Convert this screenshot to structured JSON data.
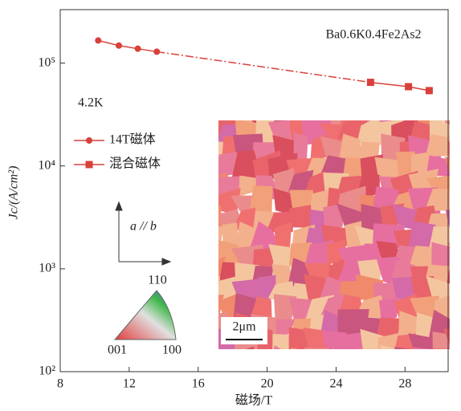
{
  "chart_data": {
    "type": "line",
    "title": "Ba0.6K0.4Fe2As2",
    "x_label": "磁场/T",
    "y_label": "Jc/(A/cm²)",
    "annotations": [
      "4.2K",
      "a // b",
      "110",
      "001",
      "100",
      "2μm"
    ],
    "xlim": [
      8,
      30.5
    ],
    "xticks": [
      8,
      12,
      16,
      20,
      24,
      28
    ],
    "ylim": [
      100,
      331000
    ],
    "log_y": true,
    "yticks": [
      {
        "value": 100,
        "label": "10²"
      },
      {
        "value": 1000,
        "label": "10³"
      },
      {
        "value": 10000,
        "label": "10⁴"
      },
      {
        "value": 100000,
        "label": "10⁵"
      }
    ],
    "legend": "upper left",
    "series": [
      {
        "name": "14T磁体",
        "color": "#d9403a",
        "marker": "circle",
        "x": [
          10.2,
          11.4,
          12.5,
          13.6
        ],
        "values": [
          166000,
          148000,
          138000,
          129000
        ]
      },
      {
        "name": "混合磁体",
        "color": "#d9403a",
        "marker": "square",
        "x": [
          26.0,
          28.2,
          29.4
        ],
        "values": [
          65000,
          59000,
          54000
        ]
      }
    ]
  }
}
